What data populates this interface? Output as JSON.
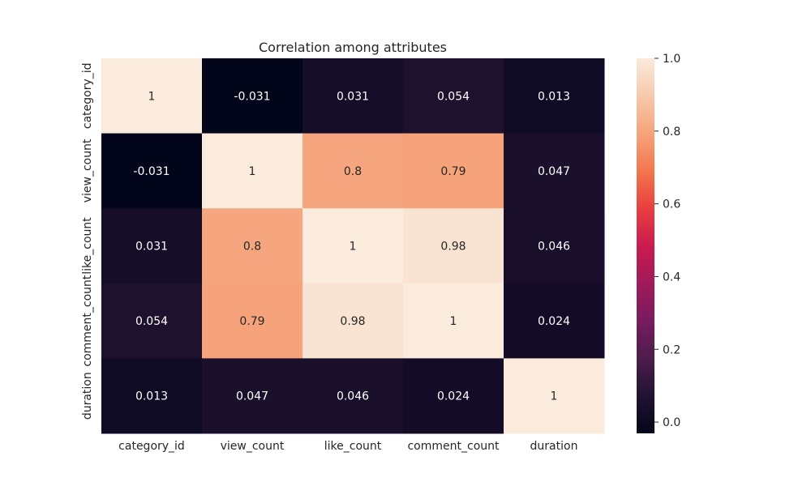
{
  "chart_data": {
    "type": "heatmap",
    "title": "Correlation among attributes",
    "xlabel": "",
    "ylabel": "",
    "x_labels": [
      "category_id",
      "view_count",
      "like_count",
      "comment_count",
      "duration"
    ],
    "y_labels": [
      "category_id",
      "view_count",
      "like_count",
      "comment_count",
      "duration"
    ],
    "values": [
      [
        1,
        -0.031,
        0.031,
        0.054,
        0.013
      ],
      [
        -0.031,
        1,
        0.8,
        0.79,
        0.047
      ],
      [
        0.031,
        0.8,
        1,
        0.98,
        0.046
      ],
      [
        0.054,
        0.79,
        0.98,
        1,
        0.024
      ],
      [
        0.013,
        0.047,
        0.046,
        0.024,
        1
      ]
    ],
    "cell_text": [
      [
        "1",
        "-0.031",
        "0.031",
        "0.054",
        "0.013"
      ],
      [
        "-0.031",
        "1",
        "0.8",
        "0.79",
        "0.047"
      ],
      [
        "0.031",
        "0.8",
        "1",
        "0.98",
        "0.046"
      ],
      [
        "0.054",
        "0.79",
        "0.98",
        "1",
        "0.024"
      ],
      [
        "0.013",
        "0.047",
        "0.046",
        "0.024",
        "1"
      ]
    ],
    "colorbar": {
      "vmin": -0.031,
      "vmax": 1.0,
      "ticks": [
        0.0,
        0.2,
        0.4,
        0.6,
        0.8,
        1.0
      ],
      "tick_labels": [
        "0.0",
        "0.2",
        "0.4",
        "0.6",
        "0.8",
        "1.0"
      ],
      "colormap": "rocket",
      "colors": [
        "#03051a",
        "#221331",
        "#4c1d4b",
        "#781c5f",
        "#a11a5b",
        "#cb1b4f",
        "#e83f3f",
        "#f3764e",
        "#f6a47c",
        "#f7c9aa",
        "#faebdd"
      ]
    },
    "grid": false,
    "legend": "colorbar-right"
  }
}
